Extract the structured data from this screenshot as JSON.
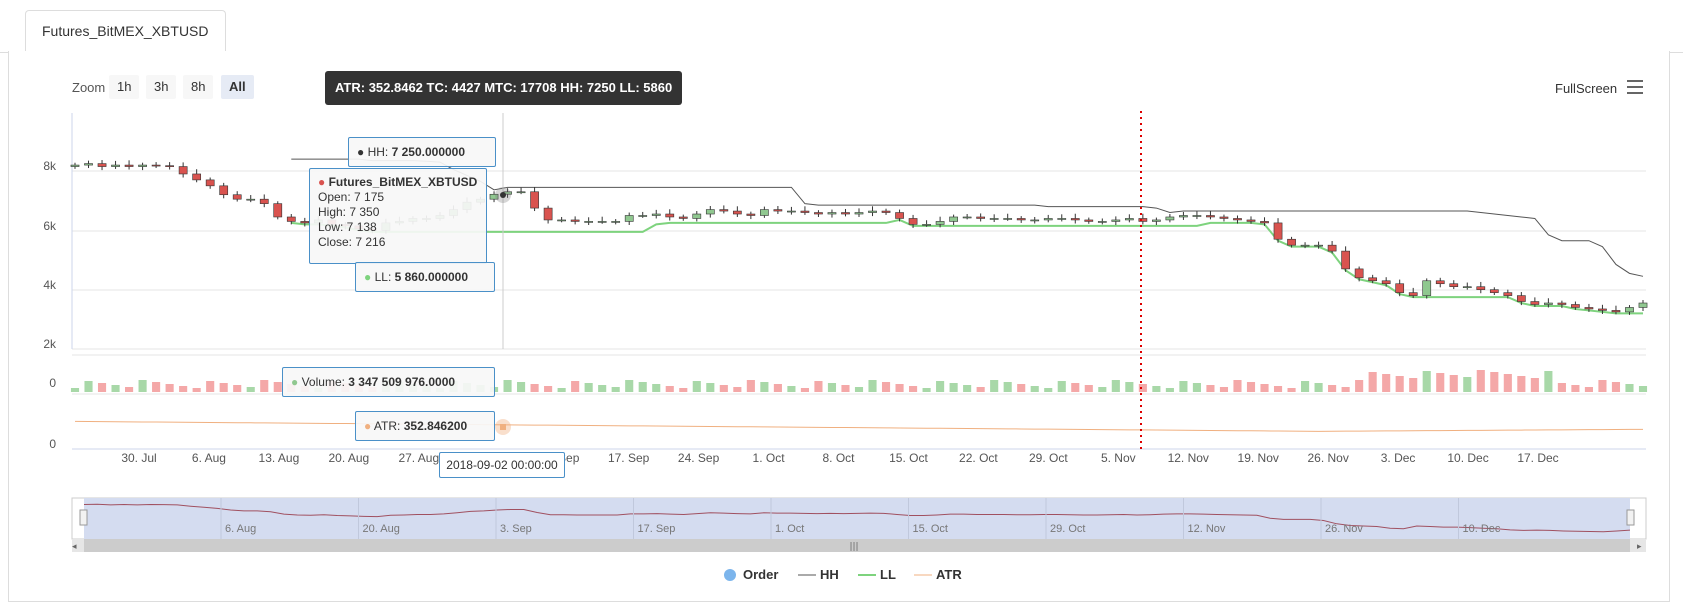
{
  "tab": {
    "label": "Futures_BitMEX_XBTUSD"
  },
  "toolbar": {
    "zoom_label": "Zoom",
    "zoom_buttons": [
      "1h",
      "3h",
      "8h",
      "All"
    ],
    "active_zoom": "All",
    "fullscreen_label": "FullScreen"
  },
  "info_box": "ATR: 352.8462 TC: 4427 MTC: 17708 HH: 7250 LL: 5860",
  "tooltips": {
    "hh_label": "HH:",
    "hh_value": "7 250.000000",
    "series_name": "Futures_BitMEX_XBTUSD",
    "open": "Open: 7 175",
    "high": "High: 7 350",
    "low": "Low: 7 138",
    "close": "Close: 7 216",
    "ll_label": "LL:",
    "ll_value": "5 860.000000",
    "volume_label": "Volume:",
    "volume_value": "3 347 509 976.0000",
    "atr_label": "ATR:",
    "atr_value": "352.846200",
    "date": "2018-09-02 00:00:00"
  },
  "colors": {
    "up": "#90c890",
    "down": "#d9534f",
    "hh": "#555555",
    "ll": "#7ed37e",
    "atr": "#f0b080",
    "order": "#7cb5ec",
    "navigator": "#d4dcf0"
  },
  "legend": [
    "Order",
    "HH",
    "LL",
    "ATR"
  ],
  "chart_data": {
    "type": "candlestick",
    "y_ticks": [
      "8k",
      "6k",
      "4k",
      "2k"
    ],
    "ylim": [
      2000,
      10000
    ],
    "x_ticks": [
      "30. Jul",
      "6. Aug",
      "13. Aug",
      "20. Aug",
      "27. Aug",
      "3. Sep",
      "10. Sep",
      "17. Sep",
      "24. Sep",
      "1. Oct",
      "8. Oct",
      "15. Oct",
      "22. Oct",
      "29. Oct",
      "5. Nov",
      "12. Nov",
      "19. Nov",
      "26. Nov",
      "3. Dec",
      "10. Dec",
      "17. Dec"
    ],
    "volume_axis_label": "0",
    "atr_axis_label": "0",
    "navigator_ticks": [
      "6. Aug",
      "20. Aug",
      "3. Sep",
      "17. Sep",
      "1. Oct",
      "15. Oct",
      "29. Oct",
      "12. Nov",
      "26. Nov",
      "10. Dec"
    ],
    "close": [
      8200,
      8250,
      8150,
      8200,
      8150,
      8200,
      8180,
      8150,
      7900,
      7700,
      7500,
      7200,
      7050,
      7050,
      6900,
      6450,
      6300,
      6250,
      6350,
      6200,
      6150,
      6050,
      6000,
      6250,
      6300,
      6400,
      6400,
      6500,
      6700,
      6950,
      7050,
      7216,
      7300,
      7300,
      6750,
      6350,
      6350,
      6300,
      6300,
      6300,
      6300,
      6500,
      6500,
      6550,
      6450,
      6400,
      6550,
      6700,
      6650,
      6550,
      6500,
      6700,
      6650,
      6650,
      6600,
      6550,
      6600,
      6550,
      6600,
      6650,
      6600,
      6400,
      6200,
      6200,
      6300,
      6450,
      6450,
      6400,
      6400,
      6400,
      6350,
      6350,
      6400,
      6400,
      6350,
      6300,
      6300,
      6350,
      6400,
      6300,
      6350,
      6450,
      6500,
      6500,
      6450,
      6400,
      6350,
      6300,
      6250,
      5700,
      5500,
      5500,
      5500,
      5300,
      4700,
      4400,
      4300,
      4200,
      3900,
      3800,
      4300,
      4200,
      4100,
      4100,
      4000,
      3900,
      3800,
      3600,
      3500,
      3550,
      3500,
      3400,
      3350,
      3300,
      3250,
      3400,
      3550
    ]
  }
}
